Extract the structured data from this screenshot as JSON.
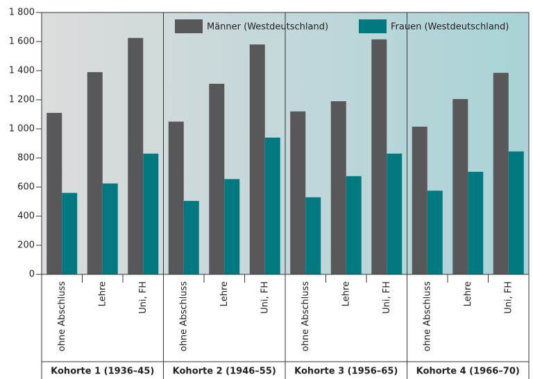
{
  "chart_data": {
    "type": "bar",
    "categories": [
      "ohne Abschluss",
      "Lehre",
      "Uni, FH",
      "ohne Abschluss",
      "Lehre",
      "Uni, FH",
      "ohne Abschluss",
      "Lehre",
      "Uni, FH",
      "ohne Abschluss",
      "Lehre",
      "Uni, FH"
    ],
    "groups": [
      "Kohorte 1 (1936–45)",
      "Kohorte 2 (1946–55)",
      "Kohorte 3 (1956–65)",
      "Kohorte 4 (1966–70)"
    ],
    "series": [
      {
        "name": "Männer (Westdeutschland)",
        "color": "#58585a",
        "values": [
          1110,
          1390,
          1625,
          1050,
          1310,
          1580,
          1120,
          1190,
          1615,
          1015,
          1205,
          1385
        ]
      },
      {
        "name": "Frauen (Westdeutschland)",
        "color": "#007a80",
        "values": [
          560,
          625,
          830,
          505,
          655,
          940,
          530,
          675,
          830,
          575,
          705,
          845
        ]
      }
    ],
    "ylim": [
      0,
      1800
    ],
    "yticks": [
      0,
      200,
      400,
      600,
      800,
      {
        "value": 1000,
        "label": "1 000"
      },
      {
        "value": 1200,
        "label": "1 200"
      },
      {
        "value": 1400,
        "label": "1 400"
      },
      {
        "value": 1600,
        "label": "1 600"
      },
      {
        "value": 1800,
        "label": "1 800"
      }
    ],
    "legend": "top-right"
  }
}
